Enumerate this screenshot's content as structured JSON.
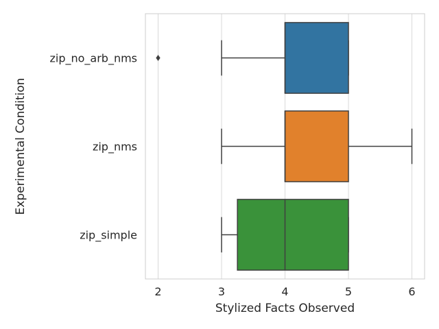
{
  "chart_data": {
    "type": "box",
    "orientation": "horizontal",
    "title": "",
    "xlabel": "Stylized Facts Observed",
    "ylabel": "Experimental Condition",
    "xlim": [
      1.8,
      6.2
    ],
    "xticks": [
      "2",
      "3",
      "4",
      "5",
      "6"
    ],
    "grid": true,
    "grid_color": "#d9d9d9",
    "frame_color": "#cccccc",
    "line_color": "#3f3f3f",
    "categories": [
      {
        "label": "zip_no_arb_nms",
        "color": "#3274a1",
        "whisker_low": 3,
        "q1": 4,
        "median": 4,
        "q3": 5,
        "whisker_high": 5,
        "outliers": [
          2
        ]
      },
      {
        "label": "zip_nms",
        "color": "#e1812c",
        "whisker_low": 3,
        "q1": 4,
        "median": 4,
        "q3": 5,
        "whisker_high": 6,
        "outliers": []
      },
      {
        "label": "zip_simple",
        "color": "#3a923a",
        "whisker_low": 3,
        "q1": 3.25,
        "median": 4,
        "q3": 5,
        "whisker_high": 5,
        "outliers": []
      }
    ]
  }
}
